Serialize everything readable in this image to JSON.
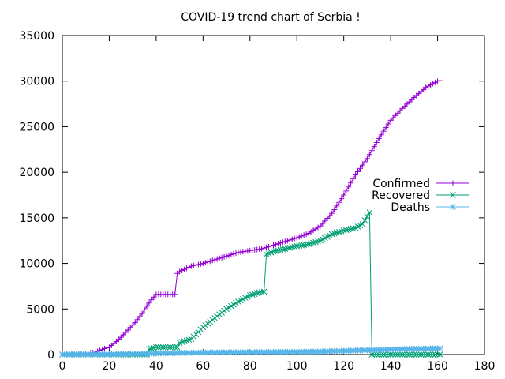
{
  "chart_data": {
    "type": "line",
    "title": "COVID-19 trend chart of Serbia !",
    "xlabel": "",
    "ylabel": "",
    "xlim": [
      0,
      180
    ],
    "ylim": [
      0,
      35000
    ],
    "x_ticks": [
      0,
      20,
      40,
      60,
      80,
      100,
      120,
      140,
      160,
      180
    ],
    "y_ticks": [
      0,
      5000,
      10000,
      15000,
      20000,
      25000,
      30000,
      35000
    ],
    "grid": false,
    "legend_position": "right",
    "series": [
      {
        "name": "Confirmed",
        "color": "#9400d3",
        "marker": "plus",
        "points": [
          [
            0,
            0
          ],
          [
            5,
            30
          ],
          [
            10,
            120
          ],
          [
            14,
            250
          ],
          [
            18,
            650
          ],
          [
            20,
            800
          ],
          [
            22,
            1200
          ],
          [
            25,
            1900
          ],
          [
            28,
            2700
          ],
          [
            31,
            3500
          ],
          [
            34,
            4500
          ],
          [
            36,
            5300
          ],
          [
            38,
            6000
          ],
          [
            40,
            6600
          ],
          [
            42,
            6600
          ],
          [
            45,
            6600
          ],
          [
            48,
            6600
          ],
          [
            49,
            8900
          ],
          [
            50,
            9100
          ],
          [
            55,
            9700
          ],
          [
            60,
            10000
          ],
          [
            65,
            10400
          ],
          [
            70,
            10800
          ],
          [
            75,
            11200
          ],
          [
            80,
            11400
          ],
          [
            85,
            11600
          ],
          [
            90,
            12000
          ],
          [
            95,
            12400
          ],
          [
            100,
            12800
          ],
          [
            105,
            13300
          ],
          [
            110,
            14100
          ],
          [
            115,
            15500
          ],
          [
            120,
            17500
          ],
          [
            125,
            19700
          ],
          [
            130,
            21500
          ],
          [
            135,
            23700
          ],
          [
            140,
            25700
          ],
          [
            145,
            27000
          ],
          [
            150,
            28200
          ],
          [
            155,
            29300
          ],
          [
            160,
            30000
          ],
          [
            161,
            30050
          ]
        ]
      },
      {
        "name": "Recovered",
        "color": "#009e73",
        "marker": "cross",
        "points": [
          [
            0,
            0
          ],
          [
            36,
            0
          ],
          [
            37,
            600
          ],
          [
            40,
            800
          ],
          [
            45,
            800
          ],
          [
            49,
            800
          ],
          [
            50,
            1300
          ],
          [
            55,
            1700
          ],
          [
            60,
            3000
          ],
          [
            65,
            4000
          ],
          [
            70,
            5000
          ],
          [
            75,
            5800
          ],
          [
            80,
            6500
          ],
          [
            84,
            6800
          ],
          [
            86,
            6900
          ],
          [
            87,
            11000
          ],
          [
            90,
            11300
          ],
          [
            95,
            11600
          ],
          [
            100,
            11900
          ],
          [
            105,
            12100
          ],
          [
            110,
            12500
          ],
          [
            115,
            13200
          ],
          [
            120,
            13600
          ],
          [
            125,
            13900
          ],
          [
            128,
            14300
          ],
          [
            131,
            15600
          ],
          [
            132,
            0
          ],
          [
            161,
            0
          ]
        ]
      },
      {
        "name": "Deaths",
        "color": "#56b4e9",
        "marker": "star",
        "points": [
          [
            0,
            0
          ],
          [
            20,
            20
          ],
          [
            30,
            60
          ],
          [
            40,
            120
          ],
          [
            50,
            180
          ],
          [
            60,
            220
          ],
          [
            70,
            240
          ],
          [
            80,
            260
          ],
          [
            90,
            270
          ],
          [
            100,
            290
          ],
          [
            110,
            330
          ],
          [
            120,
            400
          ],
          [
            130,
            480
          ],
          [
            140,
            550
          ],
          [
            150,
            620
          ],
          [
            161,
            680
          ]
        ]
      }
    ]
  }
}
